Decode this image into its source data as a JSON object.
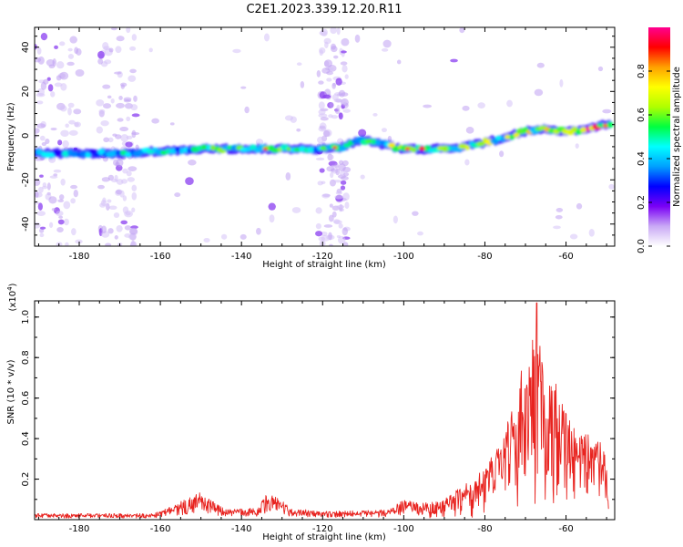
{
  "title": "C2E1.2023.339.12.20.R11",
  "chart_data": [
    {
      "type": "heatmap",
      "xlabel": "Height of straight line (km)",
      "ylabel": "Frequency (Hz)",
      "xlim": [
        -191,
        -48
      ],
      "ylim": [
        -50,
        49
      ],
      "xticks": [
        -180,
        -160,
        -140,
        -120,
        -100,
        -80,
        -60
      ],
      "yticks": [
        -40,
        -20,
        0,
        20,
        40
      ],
      "colorbar": {
        "label": "Normalized spectral amplitude",
        "range": [
          0.0,
          1.0
        ],
        "ticks": [
          0.0,
          0.2,
          0.4,
          0.6,
          0.8
        ],
        "colors": [
          "#ffffff",
          "#c9a9f5",
          "#7a00f5",
          "#0000ff",
          "#00a0ff",
          "#00ffff",
          "#00ff40",
          "#b0ff00",
          "#ffff00",
          "#ffa000",
          "#ff0000",
          "#ff0090"
        ]
      },
      "ridge": {
        "name": "signal ridge",
        "x": [
          -190,
          -180,
          -170,
          -160,
          -150,
          -140,
          -130,
          -120,
          -115,
          -110,
          -100,
          -95,
          -90,
          -85,
          -80,
          -75,
          -70,
          -65,
          -60,
          -55,
          -50
        ],
        "y": [
          -8,
          -8,
          -8,
          -7,
          -6,
          -6,
          -6,
          -6,
          -5,
          -2,
          -6,
          -6,
          -6,
          -5,
          -3,
          -1,
          2,
          3,
          2,
          3,
          5
        ],
        "amplitude": [
          0.4,
          0.42,
          0.45,
          0.5,
          0.55,
          0.6,
          0.62,
          0.55,
          0.45,
          0.5,
          0.72,
          0.78,
          0.7,
          0.62,
          0.62,
          0.68,
          0.72,
          0.75,
          0.82,
          0.9,
          0.78
        ]
      },
      "background_noise_bands_x": [
        [
          -191,
          -180
        ],
        [
          -175,
          -166
        ],
        [
          -121,
          -114
        ]
      ]
    },
    {
      "type": "line",
      "xlabel": "Height of straight line (km)",
      "ylabel": "SNR (10 * v/v)",
      "y_multiplier": "(x10",
      "y_multiplier_exp": "4",
      "y_multiplier_close": ")",
      "xlim": [
        -191,
        -48
      ],
      "ylim": [
        0,
        1.08
      ],
      "xticks": [
        -180,
        -160,
        -140,
        -120,
        -100,
        -80,
        -60
      ],
      "yticks": [
        0.2,
        0.4,
        0.6,
        0.8,
        1.0
      ],
      "color": "#e8231f",
      "envelope": {
        "x": [
          -191,
          -162,
          -158,
          -152,
          -150,
          -147,
          -144,
          -136,
          -134,
          -131,
          -128,
          -120,
          -104,
          -100,
          -96,
          -90,
          -86,
          -82,
          -80,
          -76,
          -73,
          -71,
          -69,
          -67.2,
          -65,
          -63,
          -61,
          -59,
          -57,
          -55,
          -53,
          -51,
          -50,
          -49.5
        ],
        "y": [
          0.03,
          0.03,
          0.06,
          0.12,
          0.14,
          0.09,
          0.05,
          0.06,
          0.13,
          0.11,
          0.06,
          0.04,
          0.05,
          0.1,
          0.08,
          0.1,
          0.16,
          0.21,
          0.27,
          0.38,
          0.6,
          0.74,
          0.8,
          1.07,
          0.62,
          0.72,
          0.6,
          0.5,
          0.4,
          0.44,
          0.4,
          0.4,
          0.26,
          0.05
        ]
      }
    }
  ]
}
